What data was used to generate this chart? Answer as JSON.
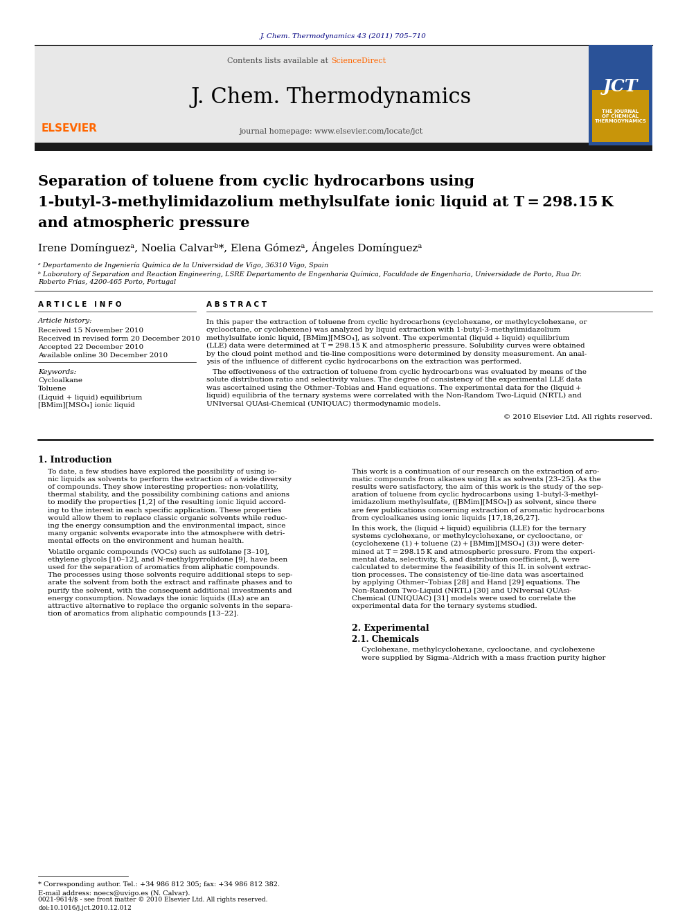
{
  "page_bg": "#ffffff",
  "top_citation": "J. Chem. Thermodynamics 43 (2011) 705–710",
  "top_citation_color": "#000080",
  "header_bg": "#e8e8e8",
  "header_text_contents": "Contents lists available at",
  "header_sciencedirect": "ScienceDirect",
  "header_sciencedirect_color": "#ff6600",
  "journal_name": "J. Chem. Thermodynamics",
  "journal_homepage": "journal homepage: www.elsevier.com/locate/jct",
  "dark_bar_color": "#1a1a1a",
  "title_line1": "Separation of toluene from cyclic hydrocarbons using",
  "title_line2": "1-butyl-3-methylimidazolium methylsulfate ionic liquid at T = 298.15 K",
  "title_line3": "and atmospheric pressure",
  "affil_a": "ᵃ Departamento de Ingeniería Química de la Universidad de Vigo, 36310 Vigo, Spain",
  "affil_b": "ᵇ Laboratory of Separation and Reaction Engineering, LSRE Departamento de Engenharia Química, Faculdade de Engenharia, Universidade de Porto, Rua Dr.",
  "affil_b2": "Roberto Frias, 4200-465 Porto, Portugal",
  "article_info_header": "ARTICLE INFO",
  "abstract_header": "ABSTRACT",
  "article_history_label": "Article history:",
  "received": "Received 15 November 2010",
  "received_revised": "Received in revised form 20 December 2010",
  "accepted": "Accepted 22 December 2010",
  "available": "Available online 30 December 2010",
  "keywords_label": "Keywords:",
  "kw1": "Cycloalkane",
  "kw2": "Toluene",
  "kw3": "(Liquid + liquid) equilibrium",
  "kw4": "[BMim][MSO₄] ionic liquid",
  "abstract_p1": "In this paper the extraction of toluene from cyclic hydrocarbons (cyclohexane, or methylcyclohexane, or\ncyclooctane, or cyclohexene) was analyzed by liquid extraction with 1-butyl-3-methylimidazolium\nmethylsulfate ionic liquid, [BMim][MSO₄], as solvent. The experimental (liquid + liquid) equilibrium\n(LLE) data were determined at T = 298.15 K and atmospheric pressure. Solubility curves were obtained\nby the cloud point method and tie-line compositions were determined by density measurement. An anal-\nysis of the influence of different cyclic hydrocarbons on the extraction was performed.",
  "abstract_p2": "The effectiveness of the extraction of toluene from cyclic hydrocarbons was evaluated by means of the\nsolute distribution ratio and selectivity values. The degree of consistency of the experimental LLE data\nwas ascertained using the Othmer–Tobias and Hand equations. The experimental data for the (liquid +\nliquid) equilibria of the ternary systems were correlated with the Non-Random Two-Liquid (NRTL) and\nUNIversal QUAsi-Chemical (UNIQUAC) thermodynamic models.",
  "copyright": "© 2010 Elsevier Ltd. All rights reserved.",
  "intro_header": "1. Introduction",
  "intro_col1_p1": "To date, a few studies have explored the possibility of using io-\nnic liquids as solvents to perform the extraction of a wide diversity\nof compounds. They show interesting properties: non-volatility,\nthermal stability, and the possibility combining cations and anions\nto modify the properties [1,2] of the resulting ionic liquid accord-\ning to the interest in each specific application. These properties\nwould allow them to replace classic organic solvents while reduc-\ning the energy consumption and the environmental impact, since\nmany organic solvents evaporate into the atmosphere with detri-\nmental effects on the environment and human health.",
  "intro_col1_p2": "Volatile organic compounds (VOCs) such as sulfolane [3–10],\nethylene glycols [10–12], and N-methylpyrrolidone [9], have been\nused for the separation of aromatics from aliphatic compounds.\nThe processes using those solvents require additional steps to sep-\narate the solvent from both the extract and raffinate phases and to\npurify the solvent, with the consequent additional investments and\nenergy consumption. Nowadays the ionic liquids (ILs) are an\nattractive alternative to replace the organic solvents in the separa-\ntion of aromatics from aliphatic compounds [13–22].",
  "intro_col2_p1": "This work is a continuation of our research on the extraction of aro-\nmatic compounds from alkanes using ILs as solvents [23–25]. As the\nresults were satisfactory, the aim of this work is the study of the sep-\naration of toluene from cyclic hydrocarbons using 1-butyl-3-methyl-\nimidazolium methylsulfate, ([BMim][MSO₄]) as solvent, since there\nare few publications concerning extraction of aromatic hydrocarbons\nfrom cycloalkanes using ionic liquids [17,18,26,27].",
  "intro_col2_p2": "In this work, the (liquid + liquid) equilibria (LLE) for the ternary\nsystems cyclohexane, or methylcyclohexane, or cyclooctane, or\n(cyclohexene (1) + toluene (2) + [BMim][MSO₄] (3)) were deter-\nmined at T = 298.15 K and atmospheric pressure. From the experi-\nmental data, selectivity, S, and distribution coefficient, β, were\ncalculated to determine the feasibility of this IL in solvent extrac-\ntion processes. The consistency of tie-line data was ascertained\nby applying Othmer–Tobias [28] and Hand [29] equations. The\nNon-Random Two-Liquid (NRTL) [30] and UNIversal QUAsi-\nChemical (UNIQUAC) [31] models were used to correlate the\nexperimental data for the ternary systems studied.",
  "section2_header": "2. Experimental",
  "section21_header": "2.1. Chemicals",
  "section21_text": "Cyclohexane, methylcyclohexane, cyclooctane, and cyclohexene\nwere supplied by Sigma–Aldrich with a mass fraction purity higher",
  "footnote_star": "* Corresponding author. Tel.: +34 986 812 305; fax: +34 986 812 382.",
  "footnote_email": "E-mail address: noecs@uvigo.es (N. Calvar).",
  "footer_issn": "0021-9614/$ - see front matter © 2010 Elsevier Ltd. All rights reserved.",
  "footer_doi": "doi:10.1016/j.jct.2010.12.012",
  "elsevier_color": "#ff6600"
}
